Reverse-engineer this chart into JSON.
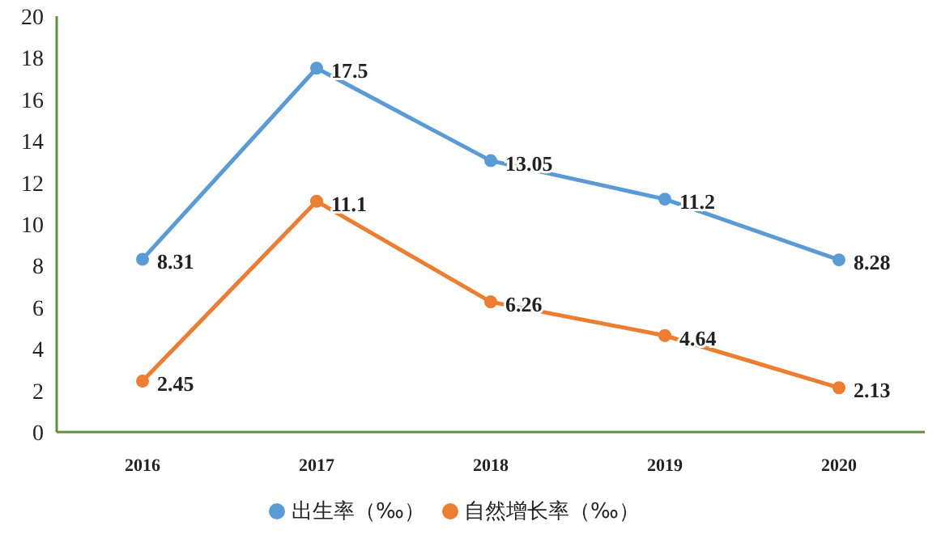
{
  "chart_data": {
    "type": "line",
    "categories": [
      "2016",
      "2017",
      "2018",
      "2019",
      "2020"
    ],
    "series": [
      {
        "name": "出生率（‰）",
        "color": "#5b9bd5",
        "values": [
          8.31,
          17.5,
          13.05,
          11.2,
          8.28
        ]
      },
      {
        "name": "自然增长率（‰）",
        "color": "#ed7d31",
        "values": [
          2.45,
          11.1,
          6.26,
          4.64,
          2.13
        ]
      }
    ],
    "ylim": [
      0,
      20
    ],
    "yticks": [
      0,
      2,
      4,
      6,
      8,
      10,
      12,
      14,
      16,
      18,
      20
    ],
    "grid": false,
    "legend": "bottom",
    "marker": "circle",
    "data_labels": true
  }
}
